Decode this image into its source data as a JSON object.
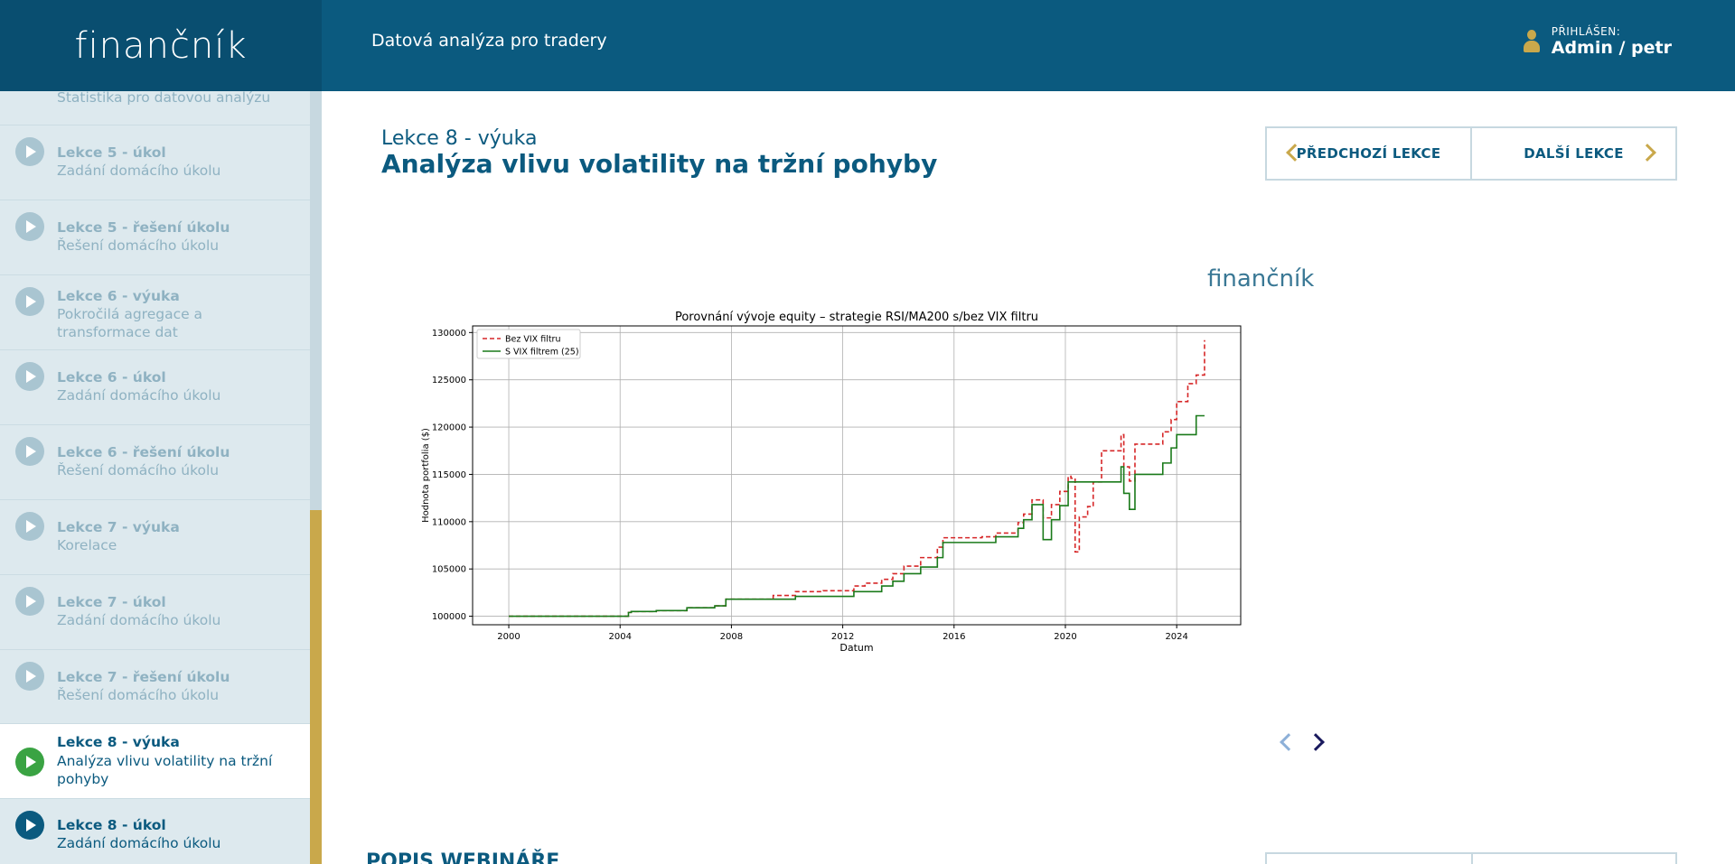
{
  "header": {
    "logo": "finančník",
    "title": "Datová analýza pro tradery",
    "user_label": "PŘIHLÁŠEN:",
    "user_name": "Admin / petr"
  },
  "sidebar": {
    "top_partial_sub": "Statistika pro datovou analýzu",
    "items": [
      {
        "title": "Lekce 5 - úkol",
        "sub": "Zadání domácího úkolu"
      },
      {
        "title": "Lekce 5 - řešení úkolu",
        "sub": "Řešení domácího úkolu"
      },
      {
        "title": "Lekce 6 - výuka",
        "sub": "Pokročilá agregace a transformace dat"
      },
      {
        "title": "Lekce 6 - úkol",
        "sub": "Zadání domácího úkolu"
      },
      {
        "title": "Lekce 6 - řešení úkolu",
        "sub": "Řešení domácího úkolu"
      },
      {
        "title": "Lekce 7 - výuka",
        "sub": "Korelace"
      },
      {
        "title": "Lekce 7 - úkol",
        "sub": "Zadání domácího úkolu"
      },
      {
        "title": "Lekce 7 - řešení úkolu",
        "sub": "Řešení domácího úkolu"
      },
      {
        "title": "Lekce 8 - výuka",
        "sub": "Analýza vlivu volatility na tržní pohyby"
      },
      {
        "title": "Lekce 8 - úkol",
        "sub": "Zadání domácího úkolu"
      }
    ]
  },
  "main": {
    "kicker": "Lekce 8 - výuka",
    "heading": "Analýza vlivu volatility na tržní pohyby",
    "prev_label": "PŘEDCHOZÍ LEKCE",
    "next_label": "DALŠÍ LEKCE",
    "slide_logo": "finančník",
    "section_title": "POPIS WEBINÁŘE"
  },
  "colors": {
    "header_bg": "#0b5a7f",
    "accent": "#c9a84b",
    "active_play": "#3aa343",
    "series_no_vix": "#d62728",
    "series_vix": "#1a7a1a"
  },
  "chart_data": {
    "type": "line",
    "title": "Porovnání vývoje equity – strategie RSI/MA200 s/bez VIX filtru",
    "xlabel": "Datum",
    "ylabel": "Hodnota portfolia ($)",
    "xlim": [
      1998.7,
      2026.3
    ],
    "ylim": [
      99100,
      130700
    ],
    "x_ticks": [
      2000,
      2004,
      2008,
      2012,
      2016,
      2020,
      2024
    ],
    "y_ticks": [
      100000,
      105000,
      110000,
      115000,
      120000,
      125000,
      130000
    ],
    "grid": true,
    "legend": "top-left",
    "series": [
      {
        "name": "Bez VIX filtru",
        "style": "dashed",
        "color": "#d62728",
        "x": [
          2000,
          2004.1,
          2004.3,
          2004.4,
          2005.3,
          2006.4,
          2007.4,
          2007.8,
          2009.5,
          2010.3,
          2010.8,
          2011.3,
          2012.4,
          2012.8,
          2013.4,
          2013.8,
          2014.2,
          2014.8,
          2015.4,
          2015.6,
          2017.0,
          2017.5,
          2018.3,
          2018.5,
          2018.8,
          2019.2,
          2019.5,
          2019.8,
          2020.1,
          2020.2,
          2020.35,
          2020.5,
          2020.8,
          2021.0,
          2021.3,
          2021.6,
          2021.8,
          2022.0,
          2022.1,
          2022.3,
          2022.5,
          2023.2,
          2023.5,
          2023.8,
          2024.0,
          2024.2,
          2024.4,
          2024.7,
          2025.0
        ],
        "y": [
          100000,
          100000,
          100400,
          100500,
          100600,
          100900,
          101100,
          101800,
          102200,
          102600,
          102600,
          102700,
          103200,
          103500,
          103900,
          104500,
          105300,
          106200,
          107300,
          108300,
          108400,
          108800,
          109900,
          110800,
          112300,
          110400,
          111800,
          113200,
          114800,
          114600,
          106800,
          110500,
          111600,
          114200,
          117500,
          117500,
          117500,
          119200,
          115800,
          114300,
          118200,
          118200,
          119500,
          120800,
          122700,
          122700,
          124600,
          125500,
          129200
        ]
      },
      {
        "name": "S VIX filtrem (25)",
        "style": "solid",
        "color": "#1a7a1a",
        "x": [
          2000,
          2004.1,
          2004.3,
          2004.4,
          2005.3,
          2006.4,
          2007.4,
          2007.8,
          2009.5,
          2010.3,
          2010.8,
          2011.3,
          2012.4,
          2012.8,
          2013.4,
          2013.8,
          2014.2,
          2014.8,
          2015.4,
          2015.6,
          2017.0,
          2017.5,
          2018.3,
          2018.5,
          2018.8,
          2019.2,
          2019.5,
          2019.8,
          2020.1,
          2020.2,
          2021.0,
          2021.8,
          2022.0,
          2022.1,
          2022.3,
          2022.5,
          2023.2,
          2023.5,
          2023.8,
          2024.0,
          2024.2,
          2024.4,
          2024.7,
          2025.0
        ],
        "y": [
          100000,
          100000,
          100400,
          100500,
          100600,
          100900,
          101100,
          101800,
          101800,
          102100,
          102100,
          102100,
          102600,
          102600,
          103200,
          103700,
          104500,
          105200,
          106200,
          107800,
          107800,
          108400,
          109300,
          110200,
          111800,
          108100,
          110200,
          111700,
          114200,
          114200,
          114200,
          114200,
          115800,
          113000,
          111300,
          115000,
          115000,
          116200,
          117800,
          119200,
          119200,
          119200,
          121200,
          121200
        ]
      }
    ]
  }
}
